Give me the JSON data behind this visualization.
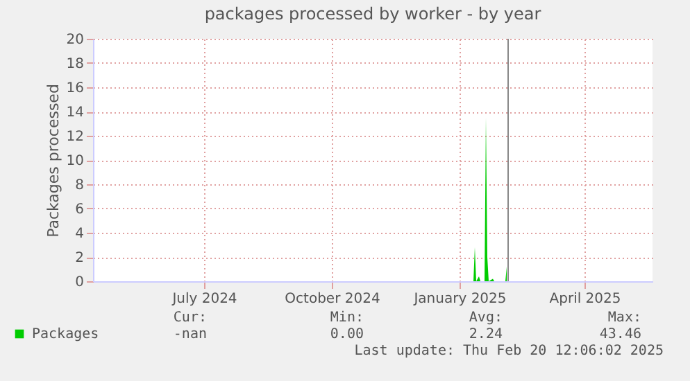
{
  "chart_data": {
    "type": "area",
    "title": "packages processed by worker - by year",
    "ylabel": "Packages processed",
    "x": [
      "2025-01-20",
      "2025-01-26",
      "2025-01-27",
      "2025-01-28",
      "2025-01-30",
      "2025-01-31",
      "2025-02-03",
      "2025-02-04",
      "2025-02-05",
      "2025-02-06",
      "2025-02-09",
      "2025-02-10",
      "2025-02-18",
      "2025-02-19"
    ],
    "series": [
      {
        "name": "Packages",
        "color": "#00cc00",
        "values": [
          0,
          0,
          2.8,
          0,
          0.4,
          0,
          0,
          13.5,
          2.0,
          0,
          0.2,
          0,
          0,
          1.2
        ]
      }
    ],
    "xlim": [
      "2024-04-27",
      "2025-06-04"
    ],
    "xticks": [
      {
        "value": "2024-07-16",
        "label": "July 2024"
      },
      {
        "value": "2024-10-16",
        "label": "October 2024"
      },
      {
        "value": "2025-01-16",
        "label": "January 2025"
      },
      {
        "value": "2025-04-16",
        "label": "April 2025"
      }
    ],
    "ylim": [
      0,
      20
    ],
    "yticks": [
      0,
      2,
      4,
      6,
      8,
      10,
      12,
      14,
      16,
      18,
      20
    ],
    "ref_lines": [
      {
        "axis": "x",
        "value": "2025-02-20",
        "color": "#888888"
      }
    ],
    "grid": true,
    "legend": "bottom left",
    "annotations": [
      "Cur:",
      "Min:",
      "Avg:",
      "Max:",
      "-nan",
      "0.00",
      "2.24",
      "43.46",
      "Last update: Thu Feb 20 12:06:02 2025"
    ]
  }
}
